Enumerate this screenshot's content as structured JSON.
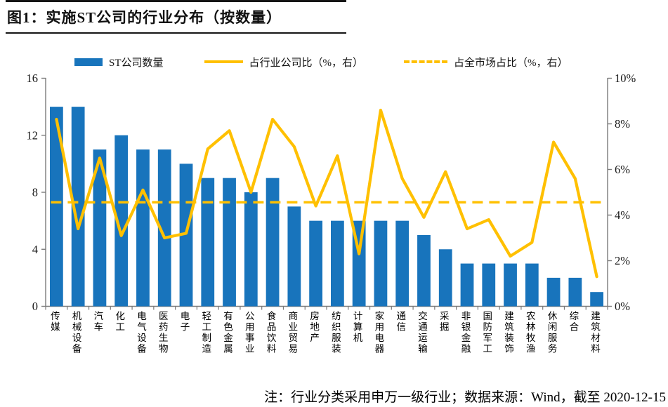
{
  "header": {
    "title": "图1：实施ST公司的行业分布（按数量）"
  },
  "legend": {
    "items": [
      {
        "label": "ST公司数量",
        "swatch": "bar-swatch",
        "color": "#1874BC"
      },
      {
        "label": "占行业公司比（%，右）",
        "swatch": "solid-line-swatch",
        "color": "#FFC000"
      },
      {
        "label": "占全市场占比（%，右）",
        "swatch": "dashed-line-swatch",
        "color": "#FFC000"
      }
    ]
  },
  "footer": {
    "note": "注：行业分类采用申万一级行业；数据来源：Wind，截至 2020-12-15"
  },
  "colors": {
    "bar_blue": "#1874BC",
    "line_yellow": "#FFC000",
    "axis_gray": "#7a7a7a",
    "rule_black": "#151515"
  },
  "chart_data": {
    "type": "bar",
    "title": "实施ST公司的行业分布（按数量）",
    "categories": [
      "传媒",
      "机械设备",
      "汽车",
      "化工",
      "电气设备",
      "医药生物",
      "电子",
      "轻工制造",
      "有色金属",
      "公用事业",
      "食品饮料",
      "商业贸易",
      "房地产",
      "纺织服装",
      "计算机",
      "家用电器",
      "通信",
      "交通运输",
      "采掘",
      "非银金融",
      "国防军工",
      "建筑装饰",
      "农林牧渔",
      "休闲服务",
      "综合",
      "建筑材料"
    ],
    "series": [
      {
        "name": "ST公司数量",
        "type": "bar",
        "axis": "left",
        "color": "#1874BC",
        "values": [
          14,
          14,
          11,
          12,
          11,
          11,
          10,
          9,
          9,
          8,
          9,
          7,
          6,
          6,
          6,
          6,
          6,
          5,
          4,
          3,
          3,
          3,
          3,
          2,
          2,
          1
        ]
      },
      {
        "name": "占行业公司比（%，右）",
        "type": "line",
        "axis": "right",
        "color": "#FFC000",
        "values": [
          8.2,
          3.4,
          6.5,
          3.1,
          5.1,
          3.0,
          3.2,
          6.9,
          7.7,
          5.0,
          8.2,
          7.0,
          4.4,
          6.6,
          2.3,
          8.6,
          5.6,
          3.9,
          5.9,
          3.4,
          3.8,
          2.2,
          2.8,
          7.2,
          5.6,
          1.3
        ]
      },
      {
        "name": "占全市场占比（%，右）",
        "type": "dashed-constant-line",
        "axis": "right",
        "color": "#FFC000",
        "value": 4.56
      }
    ],
    "left_axis": {
      "ticks": [
        0,
        4,
        8,
        12,
        16
      ],
      "range": [
        0,
        16
      ]
    },
    "right_axis": {
      "tick_labels": [
        "0%",
        "2%",
        "4%",
        "6%",
        "8%",
        "10%"
      ],
      "ticks": [
        0,
        2,
        4,
        6,
        8,
        10
      ],
      "range": [
        0,
        10
      ]
    },
    "grid": false,
    "legend_position": "top"
  }
}
